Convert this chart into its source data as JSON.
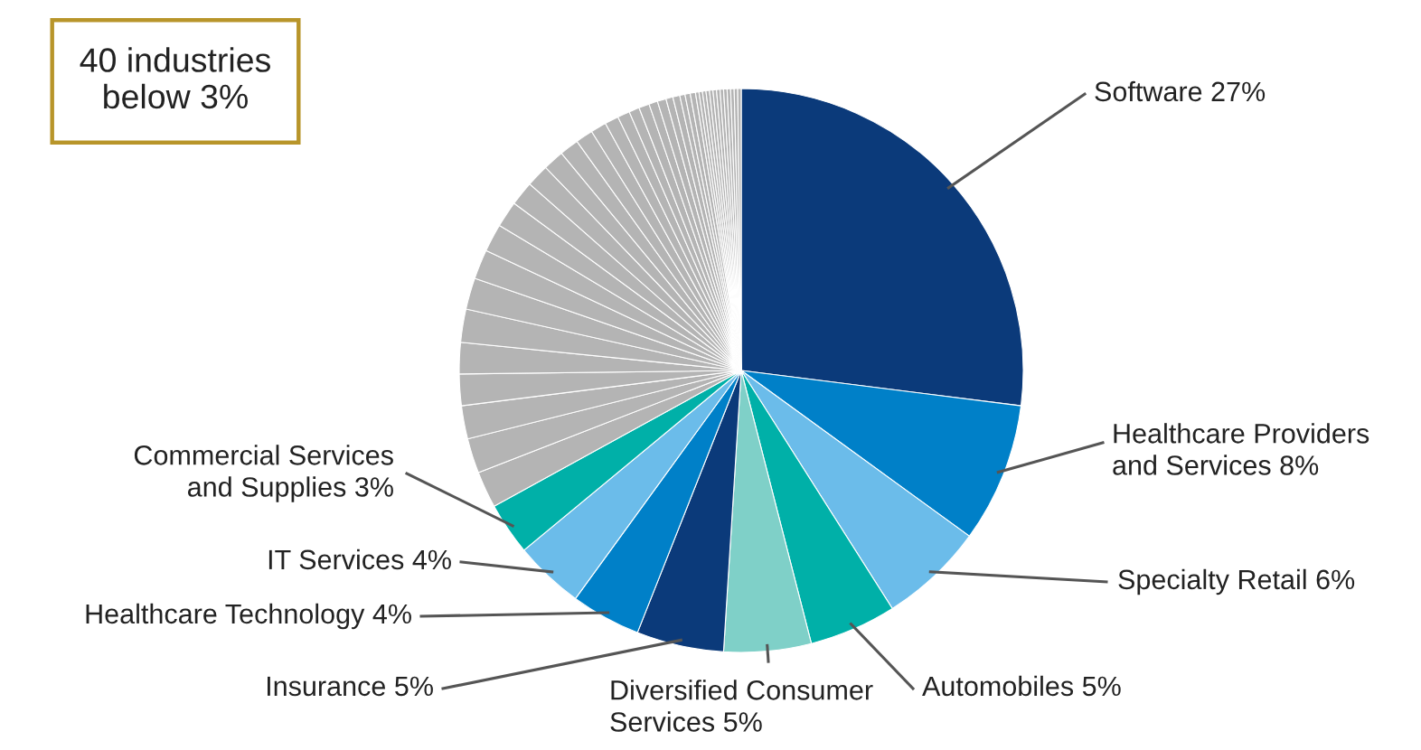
{
  "chart_data": {
    "type": "pie",
    "categories": [
      "Software",
      "Healthcare Providers\nand Services",
      "Specialty Retail",
      "Automobiles",
      "Diversified Consumer\nServices",
      "Insurance",
      "Healthcare Technology",
      "IT Services",
      "Commercial Services\nand Supplies",
      null,
      null,
      null,
      null,
      null,
      null,
      null,
      null,
      null,
      null,
      null,
      null,
      null,
      null,
      null,
      null,
      null,
      null,
      null,
      null,
      null,
      null,
      null,
      null,
      null,
      null,
      null,
      null,
      null,
      null,
      null,
      null,
      null,
      null,
      null,
      null,
      null,
      null,
      null,
      null
    ],
    "values": [
      27,
      8,
      6,
      5,
      5,
      5,
      4,
      4,
      3,
      2.1,
      2.0,
      1.9,
      1.8,
      1.8,
      1.9,
      1.8,
      1.7,
      1.6,
      1.5,
      1.4,
      1.3,
      1.2,
      1.1,
      1.0,
      0.9,
      0.8,
      0.7,
      0.6,
      0.6,
      0.5,
      0.5,
      0.4,
      0.4,
      0.3,
      0.3,
      0.3,
      0.2,
      0.2,
      0.2,
      0.2,
      0.2,
      0.2,
      0.2,
      0.2,
      0.2,
      0.2,
      0.2,
      0.2,
      0.2
    ],
    "value_labels": [
      "27%",
      "8%",
      "6%",
      "5%",
      "5%",
      "5%",
      "4%",
      "4%",
      "3%",
      null,
      null,
      null,
      null,
      null,
      null,
      null,
      null,
      null,
      null,
      null,
      null,
      null,
      null,
      null,
      null,
      null,
      null,
      null,
      null,
      null,
      null,
      null,
      null,
      null,
      null,
      null,
      null,
      null,
      null,
      null,
      null,
      null,
      null,
      null,
      null,
      null,
      null,
      null,
      null
    ],
    "colors": [
      "#0b3a7a",
      "#0080c8",
      "#6bbcea",
      "#00b0a8",
      "#7fd0c8",
      "#0b3a7a",
      "#0080c8",
      "#6bbcea",
      "#00b0a8",
      "#b4b4b4",
      "#b4b4b4",
      "#b4b4b4",
      "#b4b4b4",
      "#b4b4b4",
      "#b4b4b4",
      "#b4b4b4",
      "#b4b4b4",
      "#b4b4b4",
      "#b4b4b4",
      "#b4b4b4",
      "#b4b4b4",
      "#b4b4b4",
      "#b4b4b4",
      "#b4b4b4",
      "#b4b4b4",
      "#b4b4b4",
      "#b4b4b4",
      "#b4b4b4",
      "#b4b4b4",
      "#b4b4b4",
      "#b4b4b4",
      "#b4b4b4",
      "#b4b4b4",
      "#b4b4b4",
      "#b4b4b4",
      "#b4b4b4",
      "#b4b4b4",
      "#b4b4b4",
      "#b4b4b4",
      "#b4b4b4",
      "#b4b4b4",
      "#b4b4b4",
      "#b4b4b4",
      "#b4b4b4",
      "#b4b4b4",
      "#b4b4b4",
      "#b4b4b4",
      "#b4b4b4",
      "#b4b4b4"
    ],
    "annotations": [
      "40 industries\nbelow 3%"
    ]
  }
}
